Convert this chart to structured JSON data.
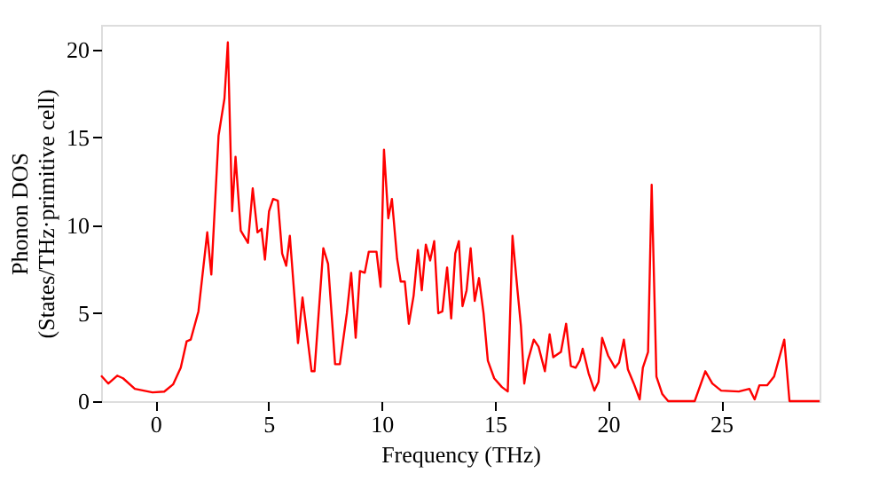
{
  "chart_data": {
    "type": "line",
    "xlabel": "Frequency (THz)",
    "ylabel": "Phonon DOS\n(States/THz·primitive cell)",
    "xlim": [
      -2.4,
      29.35
    ],
    "ylim": [
      0,
      21.4
    ],
    "xticks": [
      0,
      5,
      10,
      15,
      20,
      25
    ],
    "yticks": [
      0,
      5,
      10,
      15,
      20
    ],
    "grid": false,
    "legend": false,
    "x": [
      -2.4,
      -2.08,
      -1.69,
      -1.43,
      -0.91,
      -0.13,
      0.39,
      0.78,
      1.12,
      1.38,
      1.56,
      1.9,
      2.29,
      2.47,
      2.79,
      3.05,
      3.2,
      3.39,
      3.54,
      3.77,
      4.09,
      4.3,
      4.51,
      4.69,
      4.84,
      5.02,
      5.2,
      5.41,
      5.6,
      5.78,
      5.94,
      6.3,
      6.5,
      6.9,
      7.03,
      7.42,
      7.63,
      7.94,
      8.15,
      8.46,
      8.65,
      8.85,
      9.04,
      9.25,
      9.43,
      9.77,
      9.95,
      10.1,
      10.29,
      10.45,
      10.68,
      10.84,
      11.02,
      11.2,
      11.41,
      11.6,
      11.77,
      11.95,
      12.14,
      12.32,
      12.5,
      12.68,
      12.89,
      13.07,
      13.25,
      13.41,
      13.57,
      13.75,
      13.93,
      14.11,
      14.3,
      14.5,
      14.69,
      14.97,
      15.31,
      15.57,
      15.78,
      16.0,
      16.15,
      16.3,
      16.46,
      16.72,
      16.93,
      17.21,
      17.42,
      17.58,
      17.92,
      18.15,
      18.36,
      18.57,
      18.75,
      18.88,
      19.14,
      19.4,
      19.58,
      19.74,
      20.0,
      20.31,
      20.49,
      20.7,
      20.88,
      21.14,
      21.4,
      21.54,
      21.77,
      21.93,
      22.14,
      22.4,
      22.66,
      23.83,
      24.3,
      24.61,
      25.0,
      25.78,
      26.25,
      26.48,
      26.69,
      27.03,
      27.34,
      27.79,
      28.02,
      29.35
    ],
    "series": [
      {
        "color": "#ff0000",
        "values": [
          1.45,
          1.0,
          1.45,
          1.3,
          0.7,
          0.5,
          0.54,
          0.95,
          1.9,
          3.4,
          3.5,
          5.1,
          9.6,
          7.2,
          15.1,
          17.2,
          20.4,
          10.8,
          13.9,
          9.7,
          9.0,
          12.1,
          9.6,
          9.8,
          8.05,
          10.8,
          11.5,
          11.4,
          8.4,
          7.7,
          9.4,
          3.3,
          5.9,
          1.7,
          1.7,
          8.7,
          7.8,
          2.1,
          2.1,
          5.0,
          7.3,
          3.6,
          7.4,
          7.3,
          8.5,
          8.5,
          6.5,
          14.3,
          10.4,
          11.5,
          8.1,
          6.8,
          6.8,
          4.4,
          6.0,
          8.6,
          6.3,
          8.9,
          8.0,
          9.1,
          5.0,
          5.1,
          7.6,
          4.7,
          8.4,
          9.1,
          5.4,
          6.3,
          8.7,
          5.7,
          7.0,
          5.0,
          2.3,
          1.3,
          0.8,
          0.55,
          9.4,
          6.3,
          4.3,
          1.0,
          2.3,
          3.5,
          3.1,
          1.7,
          3.8,
          2.5,
          2.8,
          4.4,
          2.0,
          1.9,
          2.3,
          2.98,
          1.6,
          0.6,
          1.1,
          3.6,
          2.6,
          1.9,
          2.2,
          3.5,
          1.8,
          1.0,
          0.1,
          1.9,
          2.8,
          12.3,
          1.4,
          0.4,
          0.0,
          0.0,
          1.7,
          1.0,
          0.6,
          0.55,
          0.7,
          0.1,
          0.9,
          0.9,
          1.4,
          3.5,
          0.0,
          0.0
        ]
      }
    ]
  }
}
